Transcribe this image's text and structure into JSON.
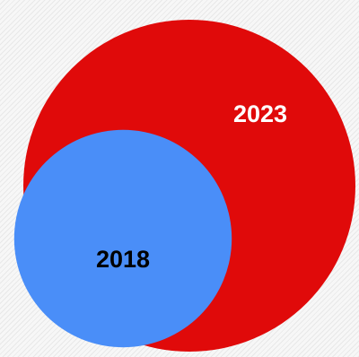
{
  "chart_data": {
    "type": "bubble",
    "title": "",
    "series": [
      {
        "label": "2023",
        "value": 2.33,
        "color": "#e00a0a",
        "label_color": "#ffffff"
      },
      {
        "label": "2018",
        "value": 1.0,
        "color": "#4a8ef8",
        "label_color": "#000000"
      }
    ]
  }
}
